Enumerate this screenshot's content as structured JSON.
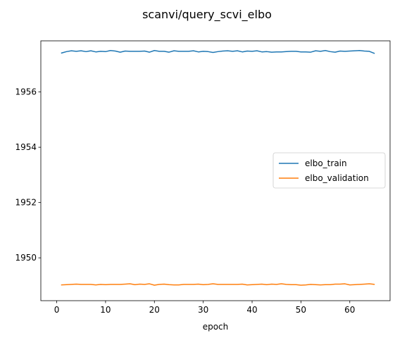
{
  "chart_data": {
    "type": "line",
    "title": "scanvi/query_scvi_elbo",
    "xlabel": "epoch",
    "ylabel": "",
    "xlim": [
      -3.25,
      68.25
    ],
    "ylim": [
      1948.45,
      1957.85
    ],
    "xticks": [
      0,
      10,
      20,
      30,
      40,
      50,
      60
    ],
    "yticks": [
      1950,
      1952,
      1954,
      1956
    ],
    "grid": false,
    "legend_position": "center-right",
    "x": [
      1,
      2,
      3,
      4,
      5,
      6,
      7,
      8,
      9,
      10,
      11,
      12,
      13,
      14,
      15,
      16,
      17,
      18,
      19,
      20,
      21,
      22,
      23,
      24,
      25,
      26,
      27,
      28,
      29,
      30,
      31,
      32,
      33,
      34,
      35,
      36,
      37,
      38,
      39,
      40,
      41,
      42,
      43,
      44,
      45,
      46,
      47,
      48,
      49,
      50,
      51,
      52,
      53,
      54,
      55,
      56,
      57,
      58,
      59,
      60,
      61,
      62,
      63,
      64,
      65
    ],
    "series": [
      {
        "name": "elbo_train",
        "color": "#1f77b4",
        "values": [
          1957.41,
          1957.46,
          1957.49,
          1957.47,
          1957.49,
          1957.46,
          1957.49,
          1957.45,
          1957.47,
          1957.46,
          1957.5,
          1957.48,
          1957.44,
          1957.48,
          1957.47,
          1957.47,
          1957.47,
          1957.48,
          1957.44,
          1957.5,
          1957.47,
          1957.47,
          1957.44,
          1957.49,
          1957.47,
          1957.47,
          1957.47,
          1957.49,
          1957.45,
          1957.47,
          1957.46,
          1957.43,
          1957.46,
          1957.48,
          1957.49,
          1957.47,
          1957.49,
          1957.45,
          1957.48,
          1957.47,
          1957.49,
          1957.45,
          1957.46,
          1957.44,
          1957.45,
          1957.45,
          1957.46,
          1957.47,
          1957.47,
          1957.45,
          1957.45,
          1957.44,
          1957.49,
          1957.47,
          1957.5,
          1957.46,
          1957.44,
          1957.48,
          1957.47,
          1957.48,
          1957.49,
          1957.5,
          1957.48,
          1957.47,
          1957.4
        ]
      },
      {
        "name": "elbo_validation",
        "color": "#ff7f0e",
        "values": [
          1949.02,
          1949.03,
          1949.04,
          1949.05,
          1949.04,
          1949.04,
          1949.04,
          1949.02,
          1949.04,
          1949.03,
          1949.04,
          1949.04,
          1949.04,
          1949.05,
          1949.06,
          1949.03,
          1949.05,
          1949.04,
          1949.06,
          1949.01,
          1949.04,
          1949.05,
          1949.03,
          1949.02,
          1949.02,
          1949.04,
          1949.04,
          1949.04,
          1949.05,
          1949.03,
          1949.04,
          1949.06,
          1949.04,
          1949.04,
          1949.04,
          1949.04,
          1949.04,
          1949.05,
          1949.02,
          1949.03,
          1949.04,
          1949.05,
          1949.03,
          1949.05,
          1949.04,
          1949.06,
          1949.04,
          1949.03,
          1949.03,
          1949.01,
          1949.02,
          1949.04,
          1949.03,
          1949.02,
          1949.03,
          1949.03,
          1949.05,
          1949.05,
          1949.06,
          1949.02,
          1949.03,
          1949.04,
          1949.05,
          1949.06,
          1949.04
        ]
      }
    ]
  }
}
